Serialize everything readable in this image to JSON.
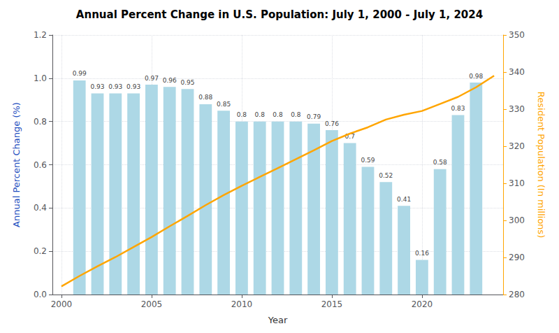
{
  "chart_data": {
    "type": "bar",
    "title": "Annual Percent Change in U.S. Population: July 1, 2000 - July 1, 2024",
    "xlabel": "Year",
    "ylabel": "Annual Percent Change (%)",
    "y2label": "Resident Population (In millions)",
    "xlim": [
      1999.5,
      2024.5
    ],
    "xticks": [
      2000,
      2005,
      2010,
      2015,
      2020
    ],
    "ylim": [
      0.0,
      1.2
    ],
    "yticks": [
      {
        "value": 0.0,
        "label": "0.0"
      },
      0.2,
      0.4,
      0.6,
      0.8,
      {
        "value": 1.0,
        "label": "1.0"
      },
      1.2
    ],
    "y2lim": [
      280,
      350
    ],
    "y2ticks": [
      280,
      290,
      300,
      310,
      320,
      330,
      340,
      350
    ],
    "grid": true,
    "series": [
      {
        "type": "bar",
        "color": "#ADD8E6",
        "data_labels": true,
        "x": [
          2001,
          2002,
          2003,
          2004,
          2005,
          2006,
          2007,
          2008,
          2009,
          2010,
          2011,
          2012,
          2013,
          2014,
          2015,
          2016,
          2017,
          2018,
          2019,
          2020,
          2021,
          2022,
          2023
        ],
        "values": [
          0.99,
          0.93,
          0.93,
          0.93,
          0.97,
          0.96,
          0.95,
          0.88,
          0.85,
          0.8,
          0.8,
          0.8,
          0.8,
          0.79,
          0.76,
          0.7,
          0.59,
          0.52,
          0.41,
          0.16,
          0.58,
          0.83,
          0.98
        ]
      },
      {
        "type": "line",
        "color": "#FFA500",
        "axis": "y2",
        "x": [
          2000,
          2001,
          2002,
          2003,
          2004,
          2005,
          2006,
          2007,
          2008,
          2009,
          2010,
          2011,
          2012,
          2013,
          2014,
          2015,
          2016,
          2017,
          2018,
          2019,
          2020,
          2021,
          2022,
          2023,
          2024
        ],
        "values": [
          282.2,
          285.0,
          287.6,
          290.1,
          292.8,
          295.5,
          298.4,
          301.2,
          304.1,
          306.8,
          309.3,
          311.7,
          314.1,
          316.5,
          318.9,
          321.4,
          323.4,
          325.1,
          327.2,
          328.5,
          329.5,
          331.4,
          333.3,
          335.9,
          339.0
        ]
      }
    ]
  }
}
